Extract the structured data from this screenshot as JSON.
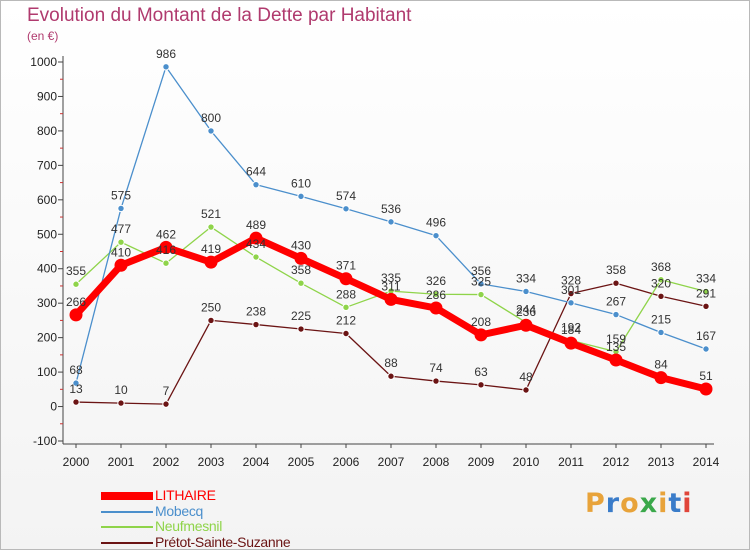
{
  "title": "Evolution du Montant de la Dette par Habitant",
  "unit": "(en €)",
  "logo": "Proxiti",
  "logo_colors": [
    "#e8a33a",
    "#3a7cc9",
    "#e8a33a",
    "#3aa84a",
    "#e8a33a",
    "#3a7cc9",
    "#e0453a"
  ],
  "chart_data": {
    "type": "line",
    "x": [
      "2000",
      "2001",
      "2002",
      "2003",
      "2004",
      "2005",
      "2006",
      "2007",
      "2008",
      "2009",
      "2010",
      "2011",
      "2012",
      "2013",
      "2014"
    ],
    "ylim": [
      -100,
      1000
    ],
    "yticks": [
      "-100",
      "0",
      "100",
      "200",
      "300",
      "400",
      "500",
      "600",
      "700",
      "800",
      "900",
      "1000"
    ],
    "grid": false,
    "legend_position": "bottom-left",
    "series": [
      {
        "name": "Prétot-Sainte-Suzanne",
        "color": "#6b1414",
        "values": [
          13,
          10,
          7,
          250,
          238,
          225,
          212,
          88,
          74,
          63,
          48,
          328,
          358,
          320,
          291
        ],
        "labels": [
          "13",
          "10",
          "7",
          "250",
          "238",
          "225",
          "212",
          "88",
          "74",
          "63",
          "48",
          "328",
          "358",
          "320",
          "291"
        ]
      },
      {
        "name": "Neufmesnil",
        "color": "#8fd44a",
        "values": [
          355,
          477,
          416,
          521,
          434,
          358,
          288,
          335,
          326,
          325,
          244,
          192,
          159,
          368,
          334
        ],
        "labels": [
          "355",
          "477",
          "416",
          "521",
          "434",
          "358",
          "288",
          "335",
          "326",
          "325",
          "244",
          "192",
          "159",
          "368",
          "334"
        ]
      },
      {
        "name": "Mobecq",
        "color": "#4b8fcc",
        "values": [
          68,
          575,
          986,
          800,
          644,
          610,
          574,
          536,
          496,
          356,
          334,
          301,
          267,
          215,
          167
        ],
        "labels": [
          "68",
          "575",
          "986",
          "800",
          "644",
          "610",
          "574",
          "536",
          "496",
          "356",
          "334",
          "301",
          "267",
          "215",
          "167"
        ]
      },
      {
        "name": "LITHAIRE",
        "color": "#ff0000",
        "values": [
          266,
          410,
          462,
          419,
          489,
          430,
          371,
          311,
          286,
          208,
          236,
          184,
          135,
          84,
          51
        ],
        "labels": [
          "266",
          "410",
          "462",
          "419",
          "489",
          "430",
          "371",
          "311",
          "286",
          "208",
          "236",
          "184",
          "135",
          "84",
          "51"
        ]
      }
    ]
  }
}
